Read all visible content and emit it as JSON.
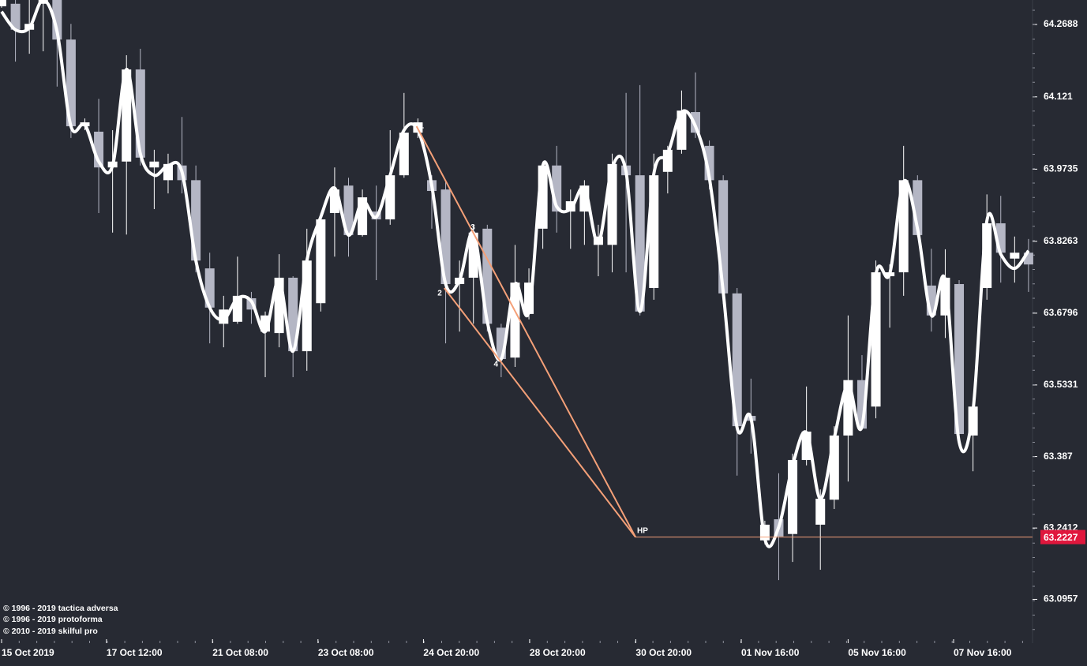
{
  "chart_data": {
    "type": "candlestick",
    "up_color": "#ffffff",
    "down_color": "#b4b6c4",
    "ylim": [
      63.0063,
      64.3187
    ],
    "yticks": [
      64.2688,
      64.121,
      63.9735,
      63.8263,
      63.6796,
      63.5331,
      63.387,
      63.2412,
      63.0957
    ],
    "xlim": [
      -0.1,
      74.3
    ],
    "xticks": [
      {
        "value": 0,
        "label": "15 Oct 2019"
      },
      {
        "value": 7.56,
        "label": "17 Oct 12:00"
      },
      {
        "value": 15.2,
        "label": "21 Oct 08:00"
      },
      {
        "value": 22.8,
        "label": "23 Oct 08:00"
      },
      {
        "value": 30.4,
        "label": "24 Oct 20:00"
      },
      {
        "value": 38.05,
        "label": "28 Oct 20:00"
      },
      {
        "value": 45.7,
        "label": "30 Oct 20:00"
      },
      {
        "value": 53.3,
        "label": "01 Nov 16:00"
      },
      {
        "value": 61.0,
        "label": "05 Nov 16:00"
      },
      {
        "value": 68.6,
        "label": "07 Nov 16:00"
      }
    ],
    "open": [
      64.306,
      64.311,
      64.258,
      64.311,
      64.319,
      64.238,
      64.061,
      64.05,
      63.977,
      63.989,
      64.177,
      63.977,
      63.951,
      63.981,
      63.951,
      63.771,
      63.658,
      63.662,
      63.71,
      63.642,
      63.639,
      63.752,
      63.602,
      63.7,
      63.884,
      63.94,
      63.839,
      63.887,
      63.871,
      63.961,
      64.048,
      63.951,
      63.932,
      63.739,
      63.752,
      63.852,
      63.65,
      63.589,
      63.678,
      63.852,
      63.981,
      63.887,
      63.887,
      63.819,
      63.819,
      63.981,
      63.961,
      63.731,
      63.968,
      64.013,
      64.09,
      64.021,
      63.951,
      63.72,
      63.47,
      63.216,
      63.259,
      63.229,
      63.38,
      63.248,
      63.299,
      63.43,
      63.543,
      63.489,
      63.755,
      63.763,
      63.951,
      63.736,
      63.675,
      63.739,
      63.43,
      63.731,
      63.863,
      63.791,
      63.803
    ],
    "high": [
      64.319,
      64.319,
      64.319,
      64.319,
      64.319,
      64.27,
      64.077,
      64.117,
      64.053,
      64.206,
      64.219,
      64.013,
      64.005,
      64.08,
      63.981,
      63.803,
      63.715,
      63.795,
      63.723,
      63.683,
      63.8,
      63.755,
      63.852,
      63.884,
      63.977,
      63.956,
      63.932,
      63.94,
      64.053,
      64.129,
      64.077,
      63.961,
      63.948,
      63.787,
      63.86,
      63.86,
      63.658,
      63.819,
      63.771,
      63.989,
      64.021,
      63.932,
      63.951,
      63.86,
      64.005,
      64.129,
      64.145,
      64.005,
      64.021,
      64.134,
      64.171,
      64.032,
      63.961,
      63.731,
      63.546,
      63.256,
      63.353,
      63.393,
      63.53,
      63.32,
      63.449,
      63.675,
      63.594,
      63.787,
      63.779,
      64.021,
      63.961,
      63.811,
      63.81,
      63.747,
      63.505,
      63.922,
      63.919,
      63.836,
      63.831
    ],
    "low": [
      64.303,
      64.193,
      64.209,
      64.214,
      64.142,
      64.037,
      64.053,
      63.884,
      63.844,
      63.84,
      63.981,
      63.892,
      63.924,
      63.924,
      63.763,
      63.618,
      63.61,
      63.658,
      63.658,
      63.549,
      63.61,
      63.549,
      63.562,
      63.683,
      63.795,
      63.795,
      63.836,
      63.747,
      63.86,
      63.956,
      64.037,
      63.852,
      63.618,
      63.642,
      63.658,
      63.642,
      63.549,
      63.57,
      63.667,
      63.811,
      63.844,
      63.811,
      63.819,
      63.755,
      63.763,
      63.763,
      63.675,
      63.707,
      63.924,
      64.005,
      64.037,
      63.932,
      63.699,
      63.348,
      63.393,
      63.208,
      63.135,
      63.172,
      63.369,
      63.156,
      63.28,
      63.336,
      63.441,
      63.465,
      63.65,
      63.715,
      63.836,
      63.642,
      63.629,
      63.417,
      63.357,
      63.707,
      63.742,
      63.742,
      63.723
    ],
    "close": [
      64.319,
      64.258,
      64.27,
      64.319,
      64.238,
      64.061,
      64.069,
      63.977,
      63.989,
      64.177,
      63.997,
      63.989,
      63.984,
      63.951,
      63.787,
      63.691,
      63.687,
      63.715,
      63.687,
      63.675,
      63.752,
      63.602,
      63.787,
      63.871,
      63.932,
      63.839,
      63.916,
      63.871,
      63.961,
      64.048,
      64.069,
      63.929,
      63.739,
      63.752,
      63.844,
      63.658,
      63.586,
      63.742,
      63.742,
      63.981,
      63.887,
      63.908,
      63.94,
      63.836,
      63.984,
      63.961,
      63.683,
      63.961,
      64.013,
      64.093,
      64.048,
      63.951,
      63.72,
      63.449,
      63.46,
      63.248,
      63.224,
      63.38,
      63.438,
      63.301,
      63.43,
      63.543,
      63.444,
      63.763,
      63.763,
      63.951,
      63.839,
      63.675,
      63.752,
      63.433,
      63.489,
      63.863,
      63.803,
      63.803,
      63.779
    ],
    "line": {
      "color": "#ffffff",
      "values": [
        64.295,
        64.258,
        64.262,
        64.319,
        64.254,
        64.061,
        64.064,
        63.989,
        63.981,
        64.177,
        64.005,
        63.961,
        63.981,
        63.968,
        63.787,
        63.691,
        63.667,
        63.71,
        63.704,
        63.642,
        63.747,
        63.602,
        63.787,
        63.876,
        63.935,
        63.839,
        63.908,
        63.876,
        63.961,
        64.053,
        64.053,
        63.94,
        63.739,
        63.747,
        63.844,
        63.662,
        63.586,
        63.739,
        63.683,
        63.981,
        63.897,
        63.892,
        63.935,
        63.823,
        63.977,
        63.968,
        63.683,
        63.964,
        64.005,
        64.09,
        64.061,
        63.956,
        63.723,
        63.446,
        63.465,
        63.219,
        63.243,
        63.369,
        63.436,
        63.301,
        63.425,
        63.534,
        63.449,
        63.758,
        63.76,
        63.948,
        63.852,
        63.675,
        63.747,
        63.417,
        63.481,
        63.868,
        63.8,
        63.771,
        63.807
      ]
    },
    "pattern": {
      "color": "#f4a078",
      "points": [
        {
          "label": "1",
          "x": 29.9,
          "y": 64.061
        },
        {
          "label": "2",
          "x": 31.9,
          "y": 63.731
        },
        {
          "label": "3",
          "x": 33.96,
          "y": 63.84
        },
        {
          "label": "4",
          "x": 35.95,
          "y": 63.586
        },
        {
          "label": "HP",
          "x": 45.68,
          "y": 63.2227
        }
      ]
    },
    "price_label_color": "#e0173d",
    "copyright": [
      "© 1996 - 2019 tactica adversa",
      "© 1996 - 2019 protoforma",
      "© 2010 - 2019 skilful pro"
    ]
  }
}
